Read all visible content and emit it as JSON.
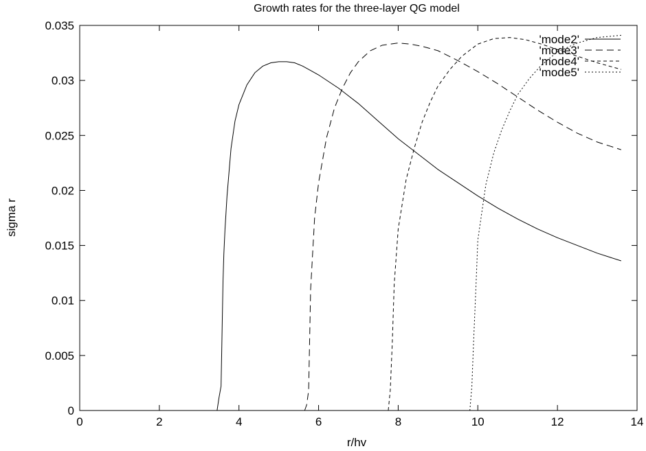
{
  "chart_data": {
    "type": "line",
    "title": "Growth rates for the three-layer QG model",
    "xlabel": "r/hv",
    "ylabel": "sigma r",
    "xlim": [
      0,
      14
    ],
    "ylim": [
      0,
      0.035
    ],
    "x_ticks": [
      "0",
      "2",
      "4",
      "6",
      "8",
      "10",
      "12",
      "14"
    ],
    "y_ticks": [
      "0",
      "0.005",
      "0.01",
      "0.015",
      "0.02",
      "0.025",
      "0.03",
      "0.035"
    ],
    "grid": false,
    "legend_position": "top-right",
    "series": [
      {
        "name": "'mode2'",
        "dash": "",
        "x": [
          3.45,
          3.5,
          3.55,
          3.6,
          3.62,
          3.65,
          3.7,
          3.8,
          3.9,
          4.0,
          4.2,
          4.4,
          4.6,
          4.8,
          5.0,
          5.2,
          5.4,
          5.6,
          5.8,
          6.0,
          6.5,
          7.0,
          7.5,
          8.0,
          8.5,
          9.0,
          9.5,
          10.0,
          10.5,
          11.0,
          11.5,
          12.0,
          12.5,
          13.0,
          13.6
        ],
        "y": [
          0.0,
          0.0012,
          0.0022,
          0.0118,
          0.0142,
          0.0165,
          0.0195,
          0.0238,
          0.0263,
          0.0278,
          0.0296,
          0.0307,
          0.0313,
          0.0316,
          0.0317,
          0.0317,
          0.0316,
          0.0313,
          0.0309,
          0.0305,
          0.0293,
          0.0279,
          0.0263,
          0.0247,
          0.0233,
          0.0219,
          0.0207,
          0.0195,
          0.0184,
          0.0174,
          0.0165,
          0.0157,
          0.015,
          0.0143,
          0.0136
        ]
      },
      {
        "name": "'mode3'",
        "dash": "10,6",
        "x": [
          5.65,
          5.7,
          5.75,
          5.8,
          5.9,
          6.0,
          6.2,
          6.4,
          6.6,
          6.8,
          7.0,
          7.3,
          7.6,
          8.0,
          8.3,
          8.6,
          9.0,
          9.5,
          10.0,
          10.5,
          11.0,
          11.5,
          12.0,
          12.5,
          13.0,
          13.6
        ],
        "y": [
          0.0,
          0.0005,
          0.0018,
          0.011,
          0.0175,
          0.0207,
          0.0248,
          0.0275,
          0.0293,
          0.0307,
          0.0317,
          0.0327,
          0.0332,
          0.0334,
          0.0333,
          0.0331,
          0.0327,
          0.0318,
          0.0308,
          0.0297,
          0.0285,
          0.0273,
          0.0262,
          0.0252,
          0.0244,
          0.0237
        ]
      },
      {
        "name": "'mode4'",
        "dash": "5,4",
        "x": [
          7.75,
          7.8,
          7.85,
          7.9,
          8.0,
          8.2,
          8.4,
          8.6,
          8.8,
          9.0,
          9.3,
          9.6,
          10.0,
          10.4,
          10.8,
          11.2,
          11.6,
          12.0,
          12.5,
          13.0,
          13.6
        ],
        "y": [
          0.0,
          0.0018,
          0.006,
          0.0115,
          0.0165,
          0.021,
          0.0238,
          0.0262,
          0.028,
          0.0295,
          0.031,
          0.0322,
          0.0333,
          0.0338,
          0.0339,
          0.0337,
          0.0333,
          0.0328,
          0.0322,
          0.0316,
          0.031
        ]
      },
      {
        "name": "'mode5'",
        "dash": "2,3",
        "x": [
          9.8,
          9.85,
          9.9,
          9.95,
          10.0,
          10.2,
          10.4,
          10.6,
          10.8,
          11.0,
          11.3,
          11.6,
          12.0,
          12.5,
          13.0,
          13.6
        ],
        "y": [
          0.0,
          0.0022,
          0.0068,
          0.011,
          0.0155,
          0.0205,
          0.0234,
          0.0255,
          0.0272,
          0.0287,
          0.0302,
          0.0314,
          0.0326,
          0.0334,
          0.0339,
          0.0341
        ]
      }
    ]
  }
}
